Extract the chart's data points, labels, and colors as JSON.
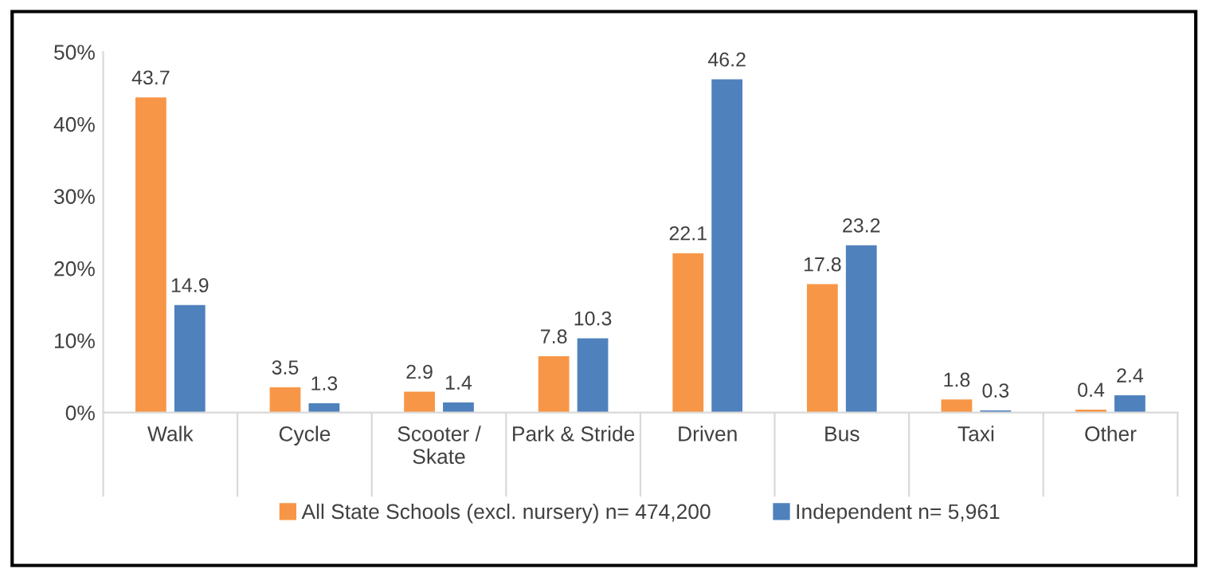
{
  "chart_data": {
    "type": "bar",
    "categories": [
      "Walk",
      "Cycle",
      "Scooter /\nSkate",
      "Park & Stride",
      "Driven",
      "Bus",
      "Taxi",
      "Other"
    ],
    "series": [
      {
        "name": "All State Schools (excl. nursery) n= 474,200",
        "color": "#f79646",
        "values": [
          43.7,
          3.5,
          2.9,
          7.8,
          22.1,
          17.8,
          1.8,
          0.4
        ]
      },
      {
        "name": "Independent n= 5,961",
        "color": "#4f81bd",
        "values": [
          14.9,
          1.3,
          1.4,
          10.3,
          46.2,
          23.2,
          0.3,
          2.4
        ]
      }
    ],
    "ylim": [
      0,
      50
    ],
    "yticks": [
      {
        "value": 0,
        "label": "0%"
      },
      {
        "value": 10,
        "label": "10%"
      },
      {
        "value": 20,
        "label": "20%"
      },
      {
        "value": 30,
        "label": "30%"
      },
      {
        "value": 40,
        "label": "40%"
      },
      {
        "value": 50,
        "label": "50%"
      }
    ],
    "data_labels": true,
    "grid": false,
    "legend": "bottom"
  }
}
